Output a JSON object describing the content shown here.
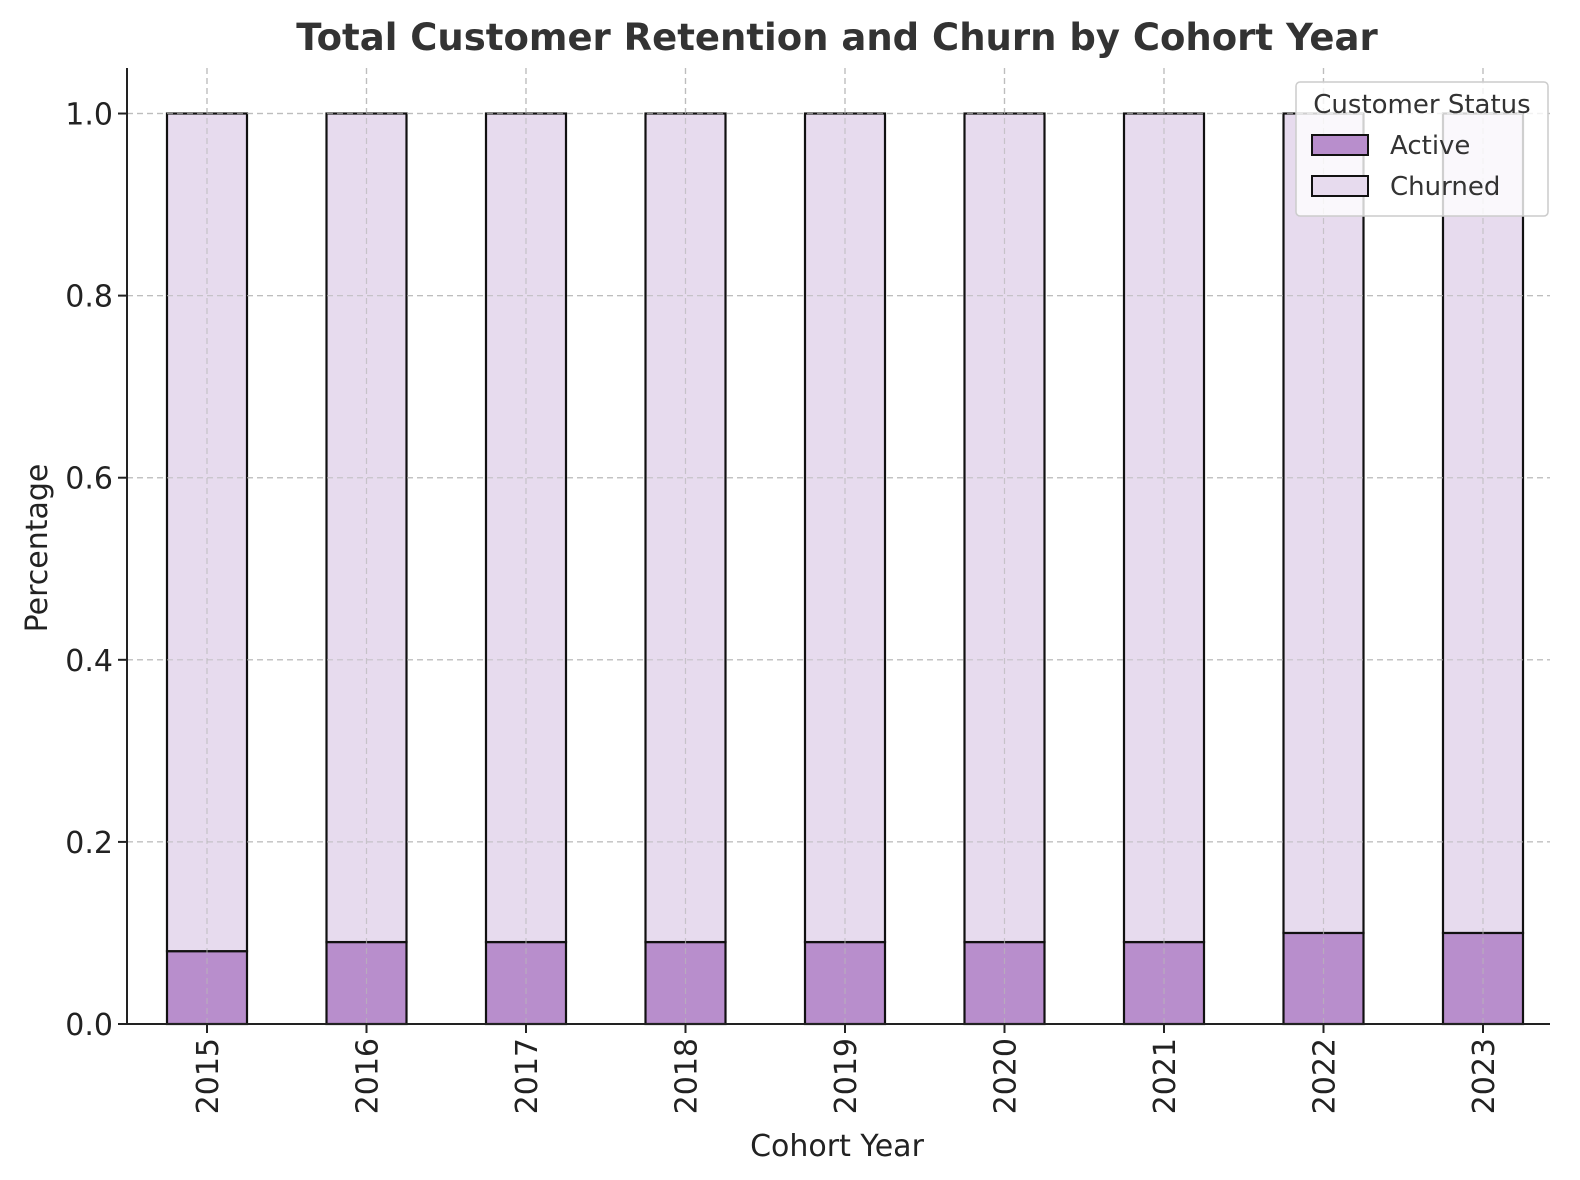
{
  "chart_data": {
    "type": "bar",
    "stacked": true,
    "title": "Total Customer Retention and Churn by Cohort Year",
    "xlabel": "Cohort Year",
    "ylabel": "Percentage",
    "categories": [
      "2015",
      "2016",
      "2017",
      "2018",
      "2019",
      "2020",
      "2021",
      "2022",
      "2023"
    ],
    "series": [
      {
        "name": "Active",
        "values": [
          0.08,
          0.09,
          0.09,
          0.09,
          0.09,
          0.09,
          0.09,
          0.1,
          0.1
        ],
        "color": "#b88ecc"
      },
      {
        "name": "Churned",
        "values": [
          0.92,
          0.91,
          0.91,
          0.91,
          0.91,
          0.91,
          0.91,
          0.9,
          0.9
        ],
        "color": "#e7dbee"
      }
    ],
    "ylim": [
      0,
      1.05
    ],
    "yticks": [
      "0.0",
      "0.2",
      "0.4",
      "0.6",
      "0.8",
      "1.0"
    ],
    "grid": true,
    "legend": {
      "title": "Customer Status",
      "position": "top-right"
    }
  }
}
